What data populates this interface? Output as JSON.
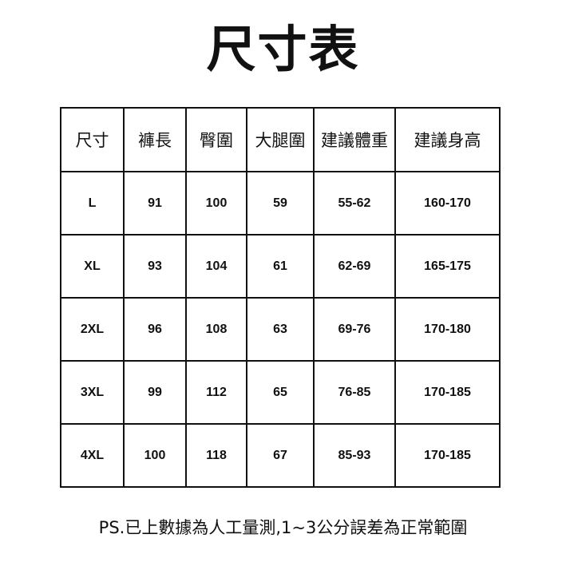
{
  "title": "尺寸表",
  "table": {
    "headers": [
      "尺寸",
      "褲長",
      "臀圍",
      "大腿圍",
      "建議體重",
      "建議身高"
    ],
    "rows": [
      [
        "L",
        "91",
        "100",
        "59",
        "55-62",
        "160-170"
      ],
      [
        "XL",
        "93",
        "104",
        "61",
        "62-69",
        "165-175"
      ],
      [
        "2XL",
        "96",
        "108",
        "63",
        "69-76",
        "170-180"
      ],
      [
        "3XL",
        "99",
        "112",
        "65",
        "76-85",
        "170-185"
      ],
      [
        "4XL",
        "100",
        "118",
        "67",
        "85-93",
        "170-185"
      ]
    ]
  },
  "note": "PS.已上數據為人工量測,1~3公分誤差為正常範圍"
}
